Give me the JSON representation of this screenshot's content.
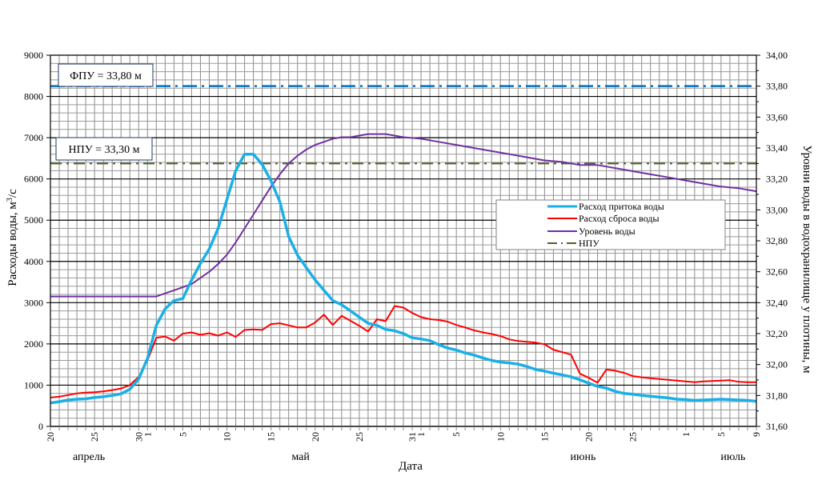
{
  "chart_data": {
    "type": "line",
    "xlabel": "Дата",
    "ylabel_left": "Расходы воды, м³/с",
    "ylabel_left_main": "Расходы воды, м",
    "ylabel_left_sup": "3",
    "ylabel_left_suffix": "/с",
    "ylabel_right": "Уровни воды в водохранилище у плотины, м",
    "ylim_left": [
      0,
      9000
    ],
    "ylim_right": [
      31.6,
      34.0
    ],
    "left_ticks": [
      "0",
      "1000",
      "2000",
      "3000",
      "4000",
      "5000",
      "6000",
      "7000",
      "8000",
      "9000"
    ],
    "right_ticks": [
      "31,60",
      "31,80",
      "32,00",
      "32,20",
      "32,40",
      "32,60",
      "32,80",
      "33,00",
      "33,20",
      "33,40",
      "33,60",
      "33,80",
      "34,00"
    ],
    "x_start": "20 апреля",
    "x_tick_labels": [
      {
        "day": 0,
        "label": "20"
      },
      {
        "day": 5,
        "label": "25"
      },
      {
        "day": 10,
        "label": "30"
      },
      {
        "day": 11,
        "label": "1"
      },
      {
        "day": 15,
        "label": "5"
      },
      {
        "day": 20,
        "label": "10"
      },
      {
        "day": 25,
        "label": "15"
      },
      {
        "day": 30,
        "label": "20"
      },
      {
        "day": 35,
        "label": "25"
      },
      {
        "day": 41,
        "label": "31"
      },
      {
        "day": 42,
        "label": "1"
      },
      {
        "day": 46,
        "label": "5"
      },
      {
        "day": 51,
        "label": "10"
      },
      {
        "day": 56,
        "label": "15"
      },
      {
        "day": 61,
        "label": "20"
      },
      {
        "day": 66,
        "label": "25"
      },
      {
        "day": 72,
        "label": "1"
      },
      {
        "day": 76,
        "label": "5"
      },
      {
        "day": 80,
        "label": "9"
      }
    ],
    "months": [
      {
        "day": 3,
        "label": "апрель"
      },
      {
        "day": 27,
        "label": "май"
      },
      {
        "day": 59,
        "label": "июнь"
      },
      {
        "day": 76,
        "label": "июль"
      }
    ],
    "grid": true,
    "legend_position": "center-right",
    "annotations": [
      {
        "text": "ФПУ = 33,80 м",
        "level": 33.8
      },
      {
        "text": "НПУ = 33,30 м",
        "level": 33.3
      }
    ],
    "series": [
      {
        "name": "Расход  притока воды",
        "axis": "left",
        "color": "#1AB0E6",
        "days": [
          0,
          1,
          2,
          3,
          4,
          5,
          6,
          7,
          8,
          9,
          10,
          11,
          12,
          13,
          14,
          15,
          16,
          17,
          18,
          19,
          20,
          21,
          22,
          23,
          24,
          25,
          26,
          27,
          28,
          29,
          30,
          31,
          32,
          33,
          34,
          35,
          36,
          37,
          38,
          39,
          40,
          41,
          42,
          43,
          44,
          45,
          46,
          47,
          48,
          49,
          50,
          51,
          52,
          53,
          54,
          55,
          56,
          57,
          58,
          59,
          60,
          61,
          62,
          63,
          64,
          65,
          66,
          67,
          68,
          69,
          70,
          71,
          72,
          73,
          74,
          75,
          76,
          77,
          78,
          79,
          80
        ],
        "values": [
          570,
          600,
          640,
          660,
          670,
          700,
          720,
          750,
          790,
          900,
          1150,
          1650,
          2450,
          2850,
          3050,
          3100,
          3550,
          3950,
          4300,
          4800,
          5500,
          6200,
          6600,
          6600,
          6350,
          5950,
          5450,
          4600,
          4150,
          3850,
          3550,
          3300,
          3050,
          2950,
          2800,
          2650,
          2500,
          2450,
          2350,
          2320,
          2250,
          2150,
          2120,
          2080,
          1980,
          1900,
          1850,
          1780,
          1730,
          1660,
          1600,
          1560,
          1540,
          1510,
          1450,
          1380,
          1340,
          1290,
          1250,
          1200,
          1130,
          1050,
          970,
          930,
          850,
          800,
          780,
          750,
          730,
          710,
          690,
          660,
          650,
          630,
          640,
          650,
          660,
          650,
          640,
          630,
          610
        ]
      },
      {
        "name": "Расход  сброса воды",
        "axis": "left",
        "color": "#FF0000",
        "days": [
          0,
          1,
          2,
          3,
          4,
          5,
          6,
          7,
          8,
          9,
          10,
          11,
          12,
          13,
          14,
          15,
          16,
          17,
          18,
          19,
          20,
          21,
          22,
          23,
          24,
          25,
          26,
          27,
          28,
          29,
          30,
          31,
          32,
          33,
          34,
          35,
          36,
          37,
          38,
          39,
          40,
          41,
          42,
          43,
          44,
          45,
          46,
          47,
          48,
          49,
          50,
          51,
          52,
          53,
          54,
          55,
          56,
          57,
          58,
          59,
          60,
          61,
          62,
          63,
          64,
          65,
          66,
          67,
          68,
          69,
          70,
          71,
          72,
          73,
          74,
          75,
          76,
          77,
          78,
          79,
          80
        ],
        "values": [
          700,
          720,
          760,
          800,
          820,
          830,
          850,
          880,
          920,
          1000,
          1200,
          1600,
          2150,
          2180,
          2080,
          2250,
          2280,
          2220,
          2260,
          2200,
          2280,
          2170,
          2340,
          2350,
          2340,
          2480,
          2500,
          2450,
          2400,
          2400,
          2520,
          2710,
          2460,
          2680,
          2560,
          2440,
          2300,
          2600,
          2550,
          2920,
          2880,
          2750,
          2650,
          2600,
          2580,
          2540,
          2460,
          2400,
          2330,
          2280,
          2240,
          2190,
          2110,
          2070,
          2050,
          2030,
          1990,
          1860,
          1800,
          1740,
          1280,
          1180,
          1060,
          1380,
          1350,
          1300,
          1220,
          1190,
          1170,
          1150,
          1130,
          1110,
          1090,
          1070,
          1090,
          1100,
          1110,
          1120,
          1080,
          1070,
          1070
        ]
      },
      {
        "name": "Уровень воды",
        "axis": "right",
        "color": "#7030A0",
        "days": [
          0,
          2,
          4,
          6,
          8,
          10,
          12,
          13,
          14,
          15,
          16,
          17,
          18,
          19,
          20,
          21,
          22,
          23,
          24,
          25,
          26,
          27,
          28,
          29,
          30,
          31,
          32,
          33,
          34,
          35,
          36,
          37,
          38,
          39,
          40,
          41,
          42,
          44,
          46,
          48,
          50,
          52,
          54,
          56,
          58,
          60,
          61,
          62,
          63,
          64,
          66,
          68,
          70,
          72,
          74,
          76,
          78,
          80
        ],
        "values": [
          32.44,
          32.44,
          32.44,
          32.44,
          32.44,
          32.44,
          32.44,
          32.46,
          32.48,
          32.5,
          32.52,
          32.56,
          32.6,
          32.65,
          32.71,
          32.79,
          32.88,
          32.97,
          33.06,
          33.15,
          33.23,
          33.3,
          33.35,
          33.39,
          33.42,
          33.44,
          33.46,
          33.47,
          33.47,
          33.48,
          33.49,
          33.49,
          33.49,
          33.48,
          33.47,
          33.465,
          33.46,
          33.44,
          33.42,
          33.4,
          33.38,
          33.36,
          33.34,
          33.32,
          33.31,
          33.29,
          33.29,
          33.29,
          33.28,
          33.27,
          33.25,
          33.23,
          33.21,
          33.19,
          33.17,
          33.15,
          33.14,
          33.12
        ]
      },
      {
        "name": "НПУ",
        "axis": "right",
        "color": "#4F6228",
        "constant": 33.3
      },
      {
        "name": "ФПУ",
        "axis": "right",
        "color": "#0070C0",
        "constant": 33.8,
        "in_legend": false
      }
    ]
  }
}
